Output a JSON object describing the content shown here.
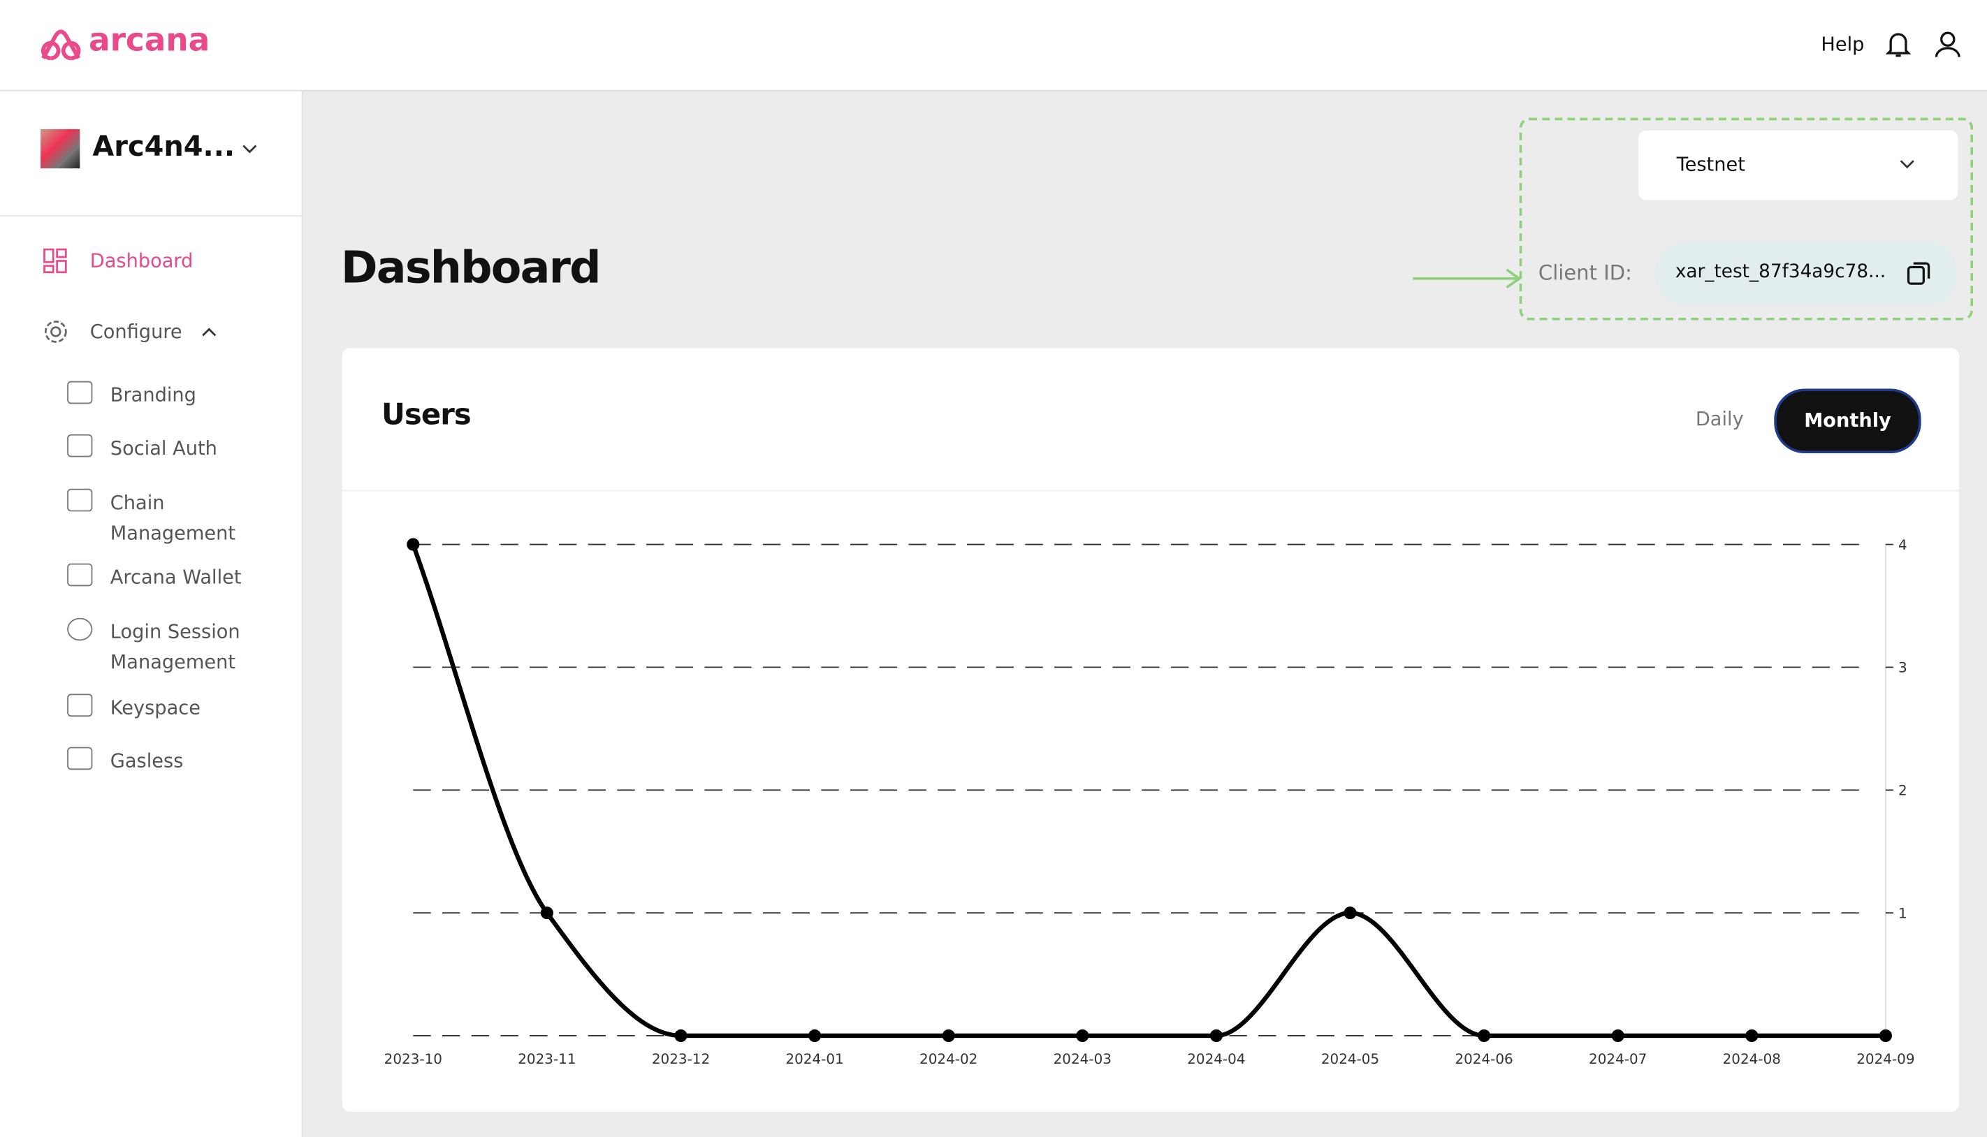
{
  "header": {
    "logo": "arcana",
    "help": "Help"
  },
  "sidebar": {
    "app_name": "Arc4n4...",
    "dashboard": "Dashboard",
    "configure": "Configure",
    "items": [
      "Branding",
      "Social Auth",
      "Chain Management",
      "Arcana Wallet",
      "Login Session Management",
      "Keyspace",
      "Gasless"
    ]
  },
  "page": {
    "title": "Dashboard",
    "network": "Testnet",
    "client_id_label": "Client ID:",
    "client_id": "xar_test_87f34a9c78..."
  },
  "chart_data": {
    "type": "line",
    "title": "Users",
    "toggle": [
      "Daily",
      "Monthly"
    ],
    "categories": [
      "2023-10",
      "2023-11",
      "2023-12",
      "2024-01",
      "2024-02",
      "2024-03",
      "2024-04",
      "2024-05",
      "2024-06",
      "2024-07",
      "2024-08",
      "2024-09"
    ],
    "values": [
      4,
      1,
      0,
      0,
      0,
      0,
      0,
      1,
      0,
      0,
      0,
      0
    ],
    "color": "#000000",
    "ylim": [
      0,
      4
    ],
    "yticks": [
      1,
      2,
      3,
      4
    ],
    "grid": true
  }
}
